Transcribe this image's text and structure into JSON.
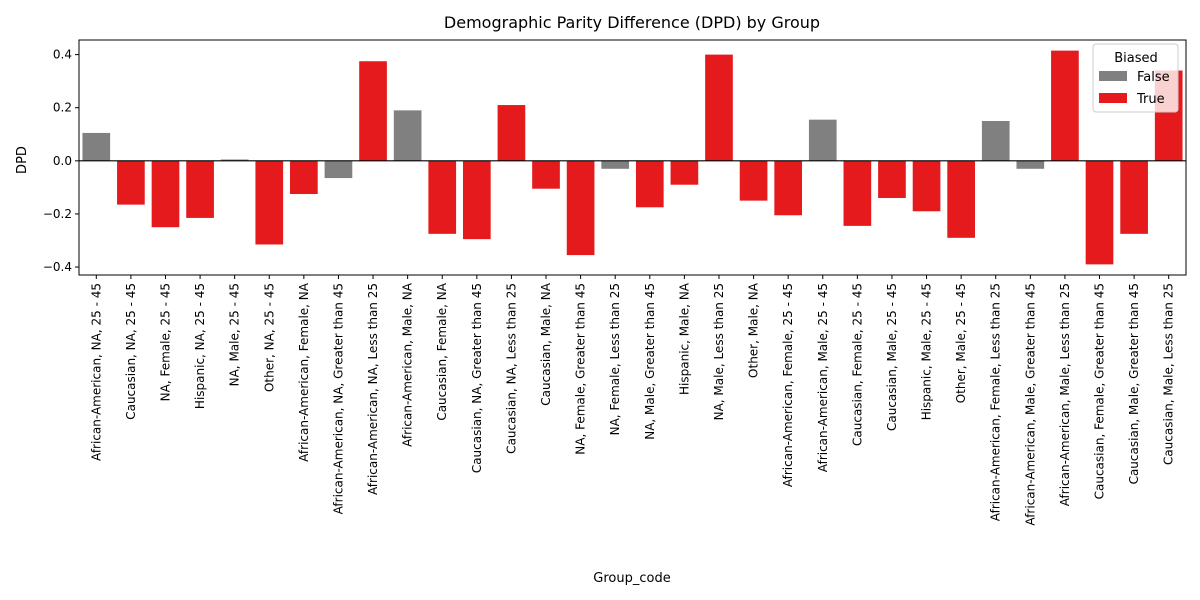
{
  "chart_data": {
    "type": "bar",
    "title": "Demographic Parity Difference (DPD) by Group",
    "xlabel": "Group_code",
    "ylabel": "DPD",
    "ylim": [
      -0.43,
      0.455
    ],
    "yticks": [
      -0.4,
      -0.2,
      0.0,
      0.2,
      0.4
    ],
    "ytick_labels": [
      "−0.4",
      "−0.2",
      "0.0",
      "0.2",
      "0.4"
    ],
    "grid": false,
    "legend": {
      "title": "Biased",
      "placement": "top-right",
      "entries": [
        {
          "label": "False",
          "color": "#808080"
        },
        {
          "label": "True",
          "color": "#e41a1c"
        }
      ]
    },
    "colors": {
      "False": "#808080",
      "True": "#e41a1c"
    },
    "categories": [
      "African-American, NA, 25 - 45",
      "Caucasian, NA, 25 - 45",
      "NA, Female, 25 - 45",
      "Hispanic, NA, 25 - 45",
      "NA, Male, 25 - 45",
      "Other, NA, 25 - 45",
      "African-American, Female, NA",
      "African-American, NA, Greater than 45",
      "African-American, NA, Less than 25",
      "African-American, Male, NA",
      "Caucasian, Female, NA",
      "Caucasian, NA, Greater than 45",
      "Caucasian, NA, Less than 25",
      "Caucasian, Male, NA",
      "NA, Female, Greater than 45",
      "NA, Female, Less than 25",
      "NA, Male, Greater than 45",
      "Hispanic, Male, NA",
      "NA, Male, Less than 25",
      "Other, Male, NA",
      "African-American, Female, 25 - 45",
      "African-American, Male, 25 - 45",
      "Caucasian, Female, 25 - 45",
      "Caucasian, Male, 25 - 45",
      "Hispanic, Male, 25 - 45",
      "Other, Male, 25 - 45",
      "African-American, Female, Less than 25",
      "African-American, Male, Greater than 45",
      "African-American, Male, Less than 25",
      "Caucasian, Female, Greater than 45",
      "Caucasian, Male, Greater than 45",
      "Caucasian, Male, Less than 25"
    ],
    "values": [
      0.105,
      -0.165,
      -0.25,
      -0.215,
      0.005,
      -0.315,
      -0.125,
      -0.065,
      0.375,
      0.19,
      -0.275,
      -0.295,
      0.21,
      -0.105,
      -0.355,
      -0.03,
      -0.175,
      -0.09,
      0.4,
      -0.15,
      -0.205,
      0.155,
      -0.245,
      -0.14,
      -0.19,
      -0.29,
      0.15,
      -0.03,
      0.415,
      -0.39,
      -0.275,
      0.34
    ],
    "biased": [
      false,
      true,
      true,
      true,
      false,
      true,
      true,
      false,
      true,
      false,
      true,
      true,
      true,
      true,
      true,
      false,
      true,
      true,
      true,
      true,
      true,
      false,
      true,
      true,
      true,
      true,
      false,
      false,
      true,
      true,
      true,
      true
    ]
  }
}
